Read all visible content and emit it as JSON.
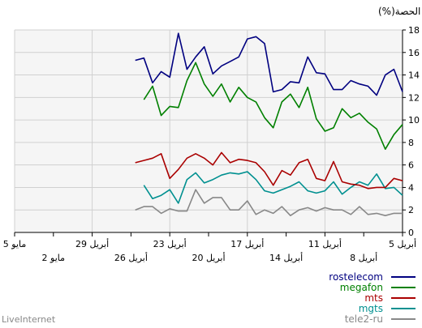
{
  "chart_data": {
    "type": "line",
    "ylabel": "(%)الحصة",
    "ylim": [
      0,
      18
    ],
    "yticks": [
      0,
      2,
      4,
      6,
      8,
      10,
      12,
      14,
      16,
      18
    ],
    "grid": true,
    "legend_position": "bottom-right",
    "xticks_row1": [
      {
        "i": 0,
        "label": "5 أبريل"
      },
      {
        "i": 9,
        "label": "11 أبريل"
      },
      {
        "i": 18,
        "label": "17 أبريل"
      },
      {
        "i": 27,
        "label": "23 أبريل"
      },
      {
        "i": 36,
        "label": "29 أبريل"
      },
      {
        "i": 45,
        "label": "5 مايو"
      }
    ],
    "xticks_row2": [
      {
        "i": 4.5,
        "label": "8 أبريل"
      },
      {
        "i": 13.5,
        "label": "14 أبريل"
      },
      {
        "i": 22.5,
        "label": "20 أبريل"
      },
      {
        "i": 31.5,
        "label": "26 أبريل"
      },
      {
        "i": 40.5,
        "label": "2 مايو"
      }
    ],
    "series": [
      {
        "name": "rostelecom",
        "color": "#000080",
        "values": [
          12.5,
          14.5,
          14.0,
          12.2,
          13.0,
          13.2,
          13.5,
          12.7,
          12.7,
          14.1,
          14.2,
          15.6,
          13.3,
          13.4,
          12.7,
          12.5,
          16.8,
          17.4,
          17.2,
          15.6,
          15.2,
          14.8,
          14.1,
          16.5,
          15.6,
          14.5,
          17.7,
          13.8,
          14.3,
          13.3,
          15.5,
          15.3
        ]
      },
      {
        "name": "megafon",
        "color": "#008000",
        "values": [
          9.6,
          8.7,
          7.4,
          9.2,
          9.8,
          10.6,
          10.2,
          11.0,
          9.3,
          9.0,
          10.1,
          12.9,
          11.1,
          12.3,
          11.6,
          9.3,
          10.2,
          11.6,
          12.0,
          12.9,
          11.6,
          13.2,
          12.1,
          13.2,
          15.1,
          13.5,
          11.1,
          11.2,
          10.4,
          13.0,
          11.8
        ]
      },
      {
        "name": "mts",
        "color": "#aa0000",
        "values": [
          4.6,
          4.8,
          4.0,
          4.0,
          3.9,
          4.2,
          4.3,
          4.5,
          6.3,
          4.6,
          4.8,
          6.5,
          6.2,
          5.1,
          5.5,
          4.2,
          5.4,
          6.2,
          6.4,
          6.5,
          6.2,
          7.1,
          6.0,
          6.6,
          7.0,
          6.6,
          5.6,
          4.8,
          7.0,
          6.6,
          6.4,
          6.2
        ]
      },
      {
        "name": "mgts",
        "color": "#009090",
        "values": [
          3.3,
          4.0,
          3.9,
          5.2,
          4.2,
          4.5,
          4.0,
          3.4,
          4.5,
          3.7,
          3.5,
          3.7,
          4.5,
          4.1,
          3.8,
          3.5,
          3.7,
          4.7,
          5.4,
          5.2,
          5.3,
          5.1,
          4.7,
          4.4,
          5.3,
          4.7,
          2.6,
          3.8,
          3.3,
          3.0,
          4.2
        ]
      },
      {
        "name": "tele2-ru",
        "color": "#888888",
        "values": [
          1.7,
          1.7,
          1.5,
          1.7,
          1.6,
          2.3,
          1.6,
          2.0,
          2.0,
          2.2,
          1.9,
          2.2,
          2.0,
          1.5,
          2.3,
          1.7,
          2.0,
          1.6,
          2.8,
          2.0,
          2.0,
          3.1,
          3.1,
          2.6,
          3.8,
          1.9,
          1.9,
          2.1,
          1.7,
          2.3,
          2.3,
          2.0
        ]
      }
    ]
  },
  "footer": {
    "brand": "LiveInternet"
  }
}
